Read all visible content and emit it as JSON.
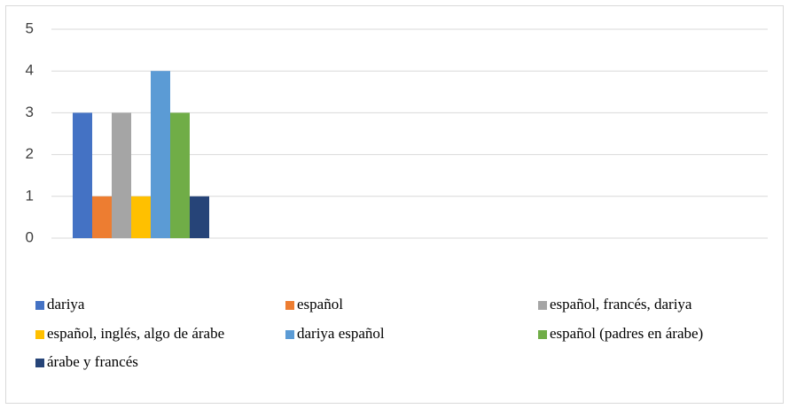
{
  "chart_data": {
    "type": "bar",
    "categories": [
      null
    ],
    "series": [
      {
        "name": "dariya",
        "color": "#4472c4",
        "values": [
          3
        ]
      },
      {
        "name": "español",
        "color": "#ed7d31",
        "values": [
          1
        ]
      },
      {
        "name": "español, francés, dariya",
        "color": "#a5a5a5",
        "values": [
          3
        ]
      },
      {
        "name": "español, inglés, algo de árabe",
        "color": "#ffc000",
        "values": [
          1
        ]
      },
      {
        "name": "dariya español",
        "color": "#5b9bd5",
        "values": [
          4
        ]
      },
      {
        "name": "español (padres en árabe)",
        "color": "#70ad47",
        "values": [
          3
        ]
      },
      {
        "name": "árabe y francés",
        "color": "#264478",
        "values": [
          1
        ]
      }
    ],
    "ylim": [
      0,
      5
    ],
    "yticks": [
      0,
      1,
      2,
      3,
      4,
      5
    ],
    "grid": true,
    "legend": "bottom"
  }
}
